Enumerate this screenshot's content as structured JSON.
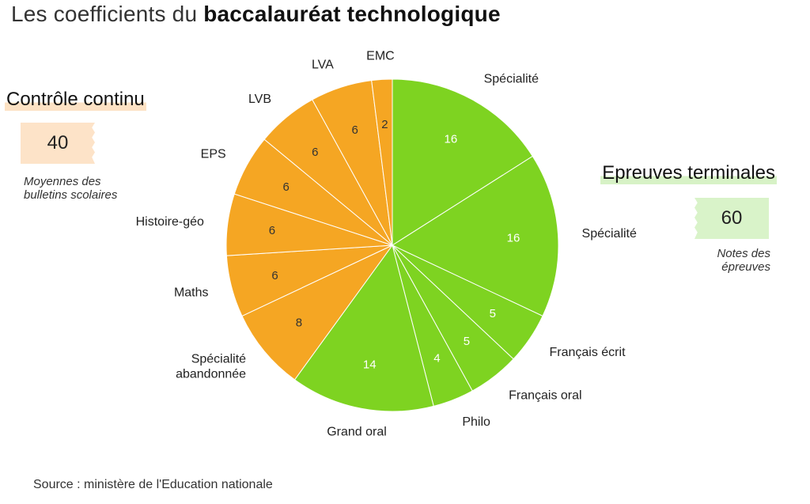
{
  "title": {
    "prefix": "Les coefficients du ",
    "bold": "baccalauréat technologique"
  },
  "colors": {
    "controle_continu": "#f5a623",
    "epreuves_terminales": "#7ed321",
    "separator": "#ffffff"
  },
  "summary": {
    "controle_continu": {
      "title": "Contrôle continu",
      "value": "40",
      "note_line1": "Moyennes des",
      "note_line2": "bulletins scolaires"
    },
    "epreuves_terminales": {
      "title": "Epreuves terminales",
      "value": "60",
      "note_line1": "Notes des",
      "note_line2": "épreuves"
    }
  },
  "source": "Source : ministère de l'Education nationale",
  "chart_data": {
    "type": "pie",
    "title": "Les coefficients du baccalauréat technologique",
    "start": "12 o'clock",
    "direction": "clockwise",
    "slices": [
      {
        "label": "Spécialité",
        "value": 16,
        "group": "Epreuves terminales",
        "label_lines": [
          "Spécialité"
        ]
      },
      {
        "label": "Spécialité",
        "value": 16,
        "group": "Epreuves terminales",
        "label_lines": [
          "Spécialité"
        ]
      },
      {
        "label": "Français écrit",
        "value": 5,
        "group": "Epreuves terminales",
        "label_lines": [
          "Français écrit"
        ]
      },
      {
        "label": "Français oral",
        "value": 5,
        "group": "Epreuves terminales",
        "label_lines": [
          "Français oral"
        ]
      },
      {
        "label": "Philo",
        "value": 4,
        "group": "Epreuves terminales",
        "label_lines": [
          "Philo"
        ]
      },
      {
        "label": "Grand oral",
        "value": 14,
        "group": "Epreuves terminales",
        "label_lines": [
          "Grand oral"
        ]
      },
      {
        "label": "Spécialité abandonnée",
        "value": 8,
        "group": "Contrôle continu",
        "label_lines": [
          "Spécialité",
          "abandonnée"
        ]
      },
      {
        "label": "Maths",
        "value": 6,
        "group": "Contrôle continu",
        "label_lines": [
          "Maths"
        ]
      },
      {
        "label": "Histoire-géo",
        "value": 6,
        "group": "Contrôle continu",
        "label_lines": [
          "Histoire-géo"
        ]
      },
      {
        "label": "EPS",
        "value": 6,
        "group": "Contrôle continu",
        "label_lines": [
          "EPS"
        ]
      },
      {
        "label": "LVB",
        "value": 6,
        "group": "Contrôle continu",
        "label_lines": [
          "LVB"
        ]
      },
      {
        "label": "LVA",
        "value": 6,
        "group": "Contrôle continu",
        "label_lines": [
          "LVA"
        ]
      },
      {
        "label": "EMC",
        "value": 2,
        "group": "Contrôle continu",
        "label_lines": [
          "EMC"
        ]
      }
    ],
    "groups": [
      {
        "name": "Contrôle continu",
        "total": 40
      },
      {
        "name": "Epreuves terminales",
        "total": 60
      }
    ]
  }
}
